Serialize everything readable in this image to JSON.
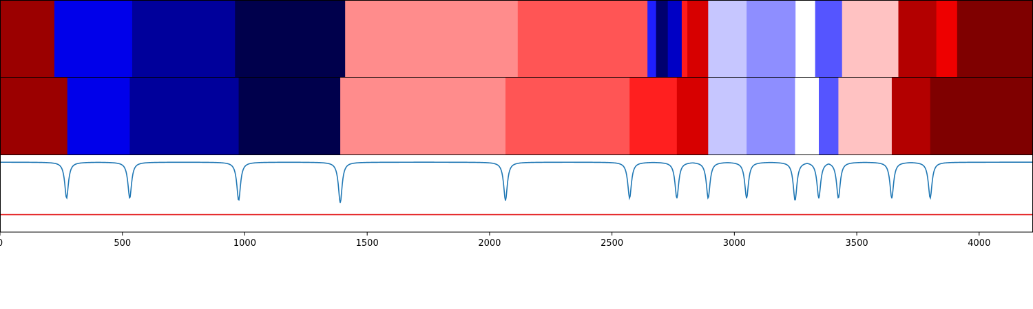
{
  "chart_data": [
    {
      "type": "heatmap",
      "title": "",
      "xlim": [
        0,
        4220
      ],
      "segments": [
        {
          "start": 0,
          "end": 222,
          "color": "#9b0000"
        },
        {
          "start": 222,
          "end": 540,
          "color": "#0000ea"
        },
        {
          "start": 540,
          "end": 960,
          "color": "#00009b"
        },
        {
          "start": 960,
          "end": 1410,
          "color": "#00004c"
        },
        {
          "start": 1410,
          "end": 2115,
          "color": "#ff8c8c"
        },
        {
          "start": 2115,
          "end": 2645,
          "color": "#ff5555"
        },
        {
          "start": 2645,
          "end": 2680,
          "color": "#1f1fff"
        },
        {
          "start": 2680,
          "end": 2728,
          "color": "#00006e"
        },
        {
          "start": 2728,
          "end": 2785,
          "color": "#0000c5"
        },
        {
          "start": 2785,
          "end": 2808,
          "color": "#ff1c1c"
        },
        {
          "start": 2808,
          "end": 2893,
          "color": "#d70000"
        },
        {
          "start": 2893,
          "end": 3050,
          "color": "#c6c6ff"
        },
        {
          "start": 3050,
          "end": 3250,
          "color": "#8e8eff"
        },
        {
          "start": 3250,
          "end": 3330,
          "color": "#ffffff"
        },
        {
          "start": 3330,
          "end": 3440,
          "color": "#5555ff"
        },
        {
          "start": 3440,
          "end": 3670,
          "color": "#ffc2c2"
        },
        {
          "start": 3670,
          "end": 3825,
          "color": "#b30000"
        },
        {
          "start": 3825,
          "end": 3910,
          "color": "#ee0000"
        },
        {
          "start": 3910,
          "end": 4220,
          "color": "#7f0000"
        }
      ]
    },
    {
      "type": "heatmap",
      "title": "",
      "xlim": [
        0,
        4220
      ],
      "segments": [
        {
          "start": 0,
          "end": 275,
          "color": "#9b0000"
        },
        {
          "start": 275,
          "end": 530,
          "color": "#0000ea"
        },
        {
          "start": 530,
          "end": 975,
          "color": "#00009b"
        },
        {
          "start": 975,
          "end": 1390,
          "color": "#00004c"
        },
        {
          "start": 1390,
          "end": 2065,
          "color": "#ff8c8c"
        },
        {
          "start": 2065,
          "end": 2572,
          "color": "#ff5555"
        },
        {
          "start": 2572,
          "end": 2765,
          "color": "#ff1f1f"
        },
        {
          "start": 2765,
          "end": 2893,
          "color": "#d70000"
        },
        {
          "start": 2893,
          "end": 3050,
          "color": "#c6c6ff"
        },
        {
          "start": 3050,
          "end": 3248,
          "color": "#8e8eff"
        },
        {
          "start": 3248,
          "end": 3345,
          "color": "#ffffff"
        },
        {
          "start": 3345,
          "end": 3425,
          "color": "#5555ff"
        },
        {
          "start": 3425,
          "end": 3643,
          "color": "#ffc2c2"
        },
        {
          "start": 3643,
          "end": 3800,
          "color": "#b30000"
        },
        {
          "start": 3800,
          "end": 4220,
          "color": "#7f0000"
        }
      ]
    },
    {
      "type": "line",
      "title": "",
      "xlabel": "",
      "ylabel": "",
      "xlim": [
        0,
        4220
      ],
      "ylim": [
        -1.2,
        0.12
      ],
      "x_ticks": [
        0,
        500,
        1000,
        1500,
        2000,
        2500,
        3000,
        3500,
        4000
      ],
      "x_tick_labels": [
        "0",
        "500",
        "1000",
        "1500",
        "2000",
        "2500",
        "3000",
        "3500",
        "4000"
      ],
      "series": [
        {
          "color": "#1f77b4",
          "baseline": 0.0,
          "dips": [
            {
              "x": 272,
              "depth": -0.62
            },
            {
              "x": 530,
              "depth": -0.62
            },
            {
              "x": 975,
              "depth": -0.66
            },
            {
              "x": 1390,
              "depth": -0.7
            },
            {
              "x": 2065,
              "depth": -0.66
            },
            {
              "x": 2572,
              "depth": -0.62
            },
            {
              "x": 2765,
              "depth": -0.62
            },
            {
              "x": 2893,
              "depth": -0.62
            },
            {
              "x": 3050,
              "depth": -0.62
            },
            {
              "x": 3248,
              "depth": -0.66
            },
            {
              "x": 3345,
              "depth": -0.62
            },
            {
              "x": 3425,
              "depth": -0.62
            },
            {
              "x": 3643,
              "depth": -0.62
            },
            {
              "x": 3800,
              "depth": -0.62
            }
          ]
        },
        {
          "color": "#e41a1c",
          "constant": -0.9
        }
      ]
    }
  ]
}
